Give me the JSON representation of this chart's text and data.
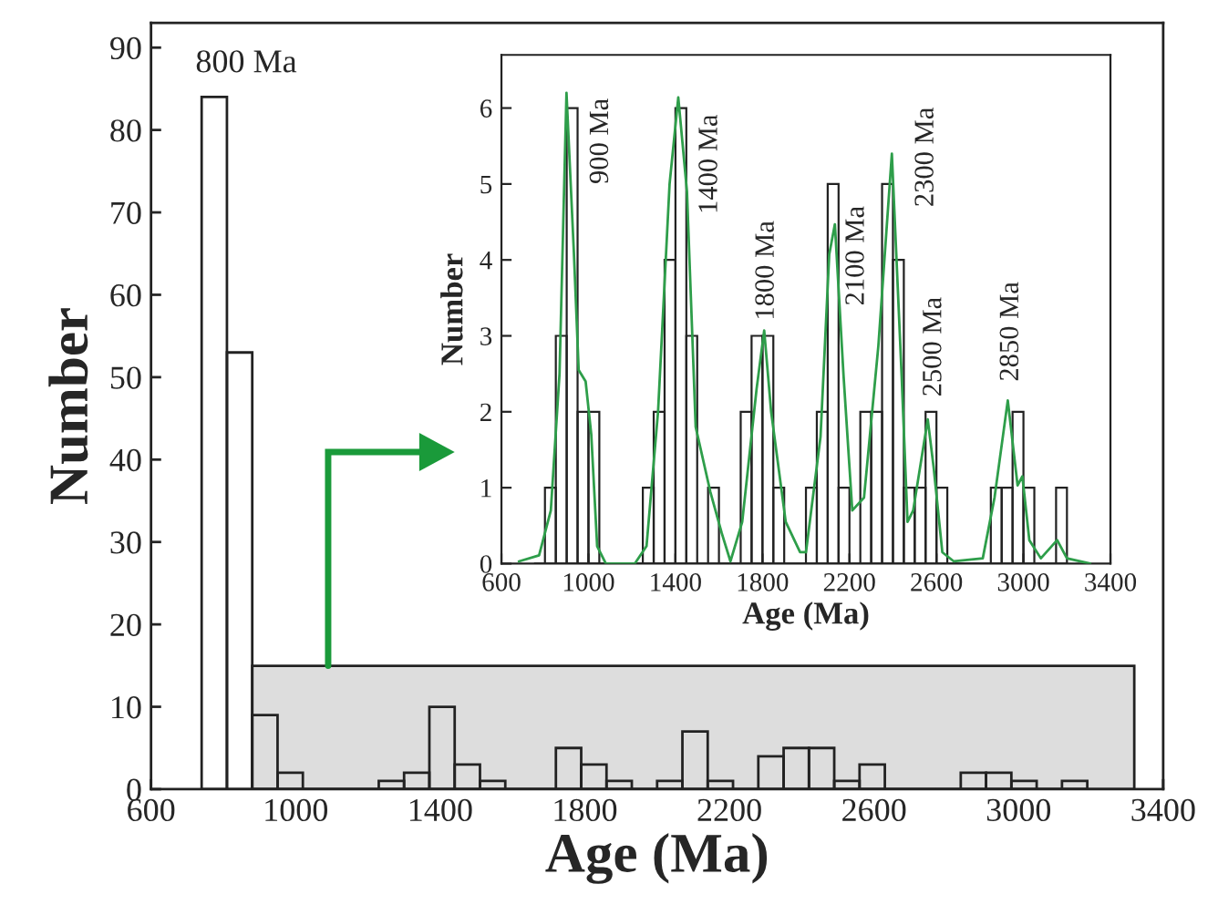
{
  "chart_data": [
    {
      "type": "histogram",
      "xlabel": "Age (Ma)",
      "ylabel": "Number",
      "bins": [
        740,
        810,
        880,
        950,
        1020,
        1090,
        1160,
        1230,
        1300,
        1370,
        1440,
        1510,
        1580,
        1650,
        1720,
        1790,
        1860,
        1930,
        2000,
        2070,
        2140,
        2210,
        2280,
        2350,
        2420,
        2490,
        2560,
        2630,
        2700,
        2770,
        2840,
        2910,
        2980,
        3050,
        3120,
        3190
      ],
      "values": [
        84,
        53,
        9,
        2,
        0,
        0,
        0,
        1,
        2,
        10,
        3,
        1,
        0,
        0,
        5,
        3,
        1,
        0,
        1,
        7,
        1,
        0,
        4,
        5,
        5,
        1,
        3,
        0,
        0,
        0,
        2,
        2,
        1,
        0,
        1
      ],
      "xlim": [
        600,
        3400
      ],
      "ylim": [
        0,
        93
      ],
      "xticks": [
        600,
        1000,
        1400,
        1800,
        2200,
        2600,
        3000,
        3400
      ],
      "yticks": [
        0,
        10,
        20,
        30,
        40,
        50,
        60,
        70,
        80,
        90
      ],
      "bands": [
        {
          "axis": "x",
          "from": 880,
          "to": 3320,
          "color": "#dddddd"
        }
      ],
      "annotations": [
        "800 Ma"
      ]
    },
    {
      "type": "histogram",
      "xlabel": "Age (Ma)",
      "ylabel": "Number",
      "bins": [
        750,
        800,
        850,
        900,
        950,
        1000,
        1050,
        1100,
        1150,
        1200,
        1250,
        1300,
        1350,
        1400,
        1450,
        1500,
        1550,
        1600,
        1650,
        1700,
        1750,
        1800,
        1850,
        1900,
        1950,
        2000,
        2050,
        2100,
        2150,
        2200,
        2250,
        2300,
        2350,
        2400,
        2450,
        2500,
        2550,
        2600,
        2650,
        2700,
        2750,
        2800,
        2850,
        2900,
        2950,
        3000,
        3050,
        3100,
        3150,
        3200
      ],
      "values": [
        0,
        1,
        3,
        6,
        2,
        2,
        0,
        0,
        0,
        0,
        1,
        2,
        4,
        6,
        3,
        0,
        1,
        0,
        0,
        2,
        3,
        3,
        1,
        0,
        0,
        1,
        2,
        5,
        1,
        0,
        2,
        2,
        5,
        4,
        1,
        1,
        2,
        1,
        0,
        0,
        0,
        0,
        1,
        1,
        2,
        1,
        0,
        0,
        1
      ],
      "series": [
        {
          "type": "line",
          "color": "#2e9e4a",
          "x": [
            680,
            773,
            827,
            867,
            899,
            933,
            955,
            987,
            1013,
            1040,
            1080,
            1213,
            1267,
            1320,
            1373,
            1413,
            1453,
            1493,
            1560,
            1613,
            1653,
            1707,
            1773,
            1808,
            1840,
            1907,
            1973,
            2000,
            2067,
            2107,
            2133,
            2173,
            2213,
            2267,
            2333,
            2395,
            2440,
            2467,
            2493,
            2560,
            2587,
            2627,
            2680,
            2813,
            2867,
            2928,
            2973,
            2995,
            3027,
            3080,
            3155,
            3200,
            3307
          ],
          "values": [
            0.03,
            0.11,
            0.7,
            2.5,
            6.2,
            4.1,
            2.55,
            2.4,
            1.7,
            0.23,
            0,
            0,
            0.23,
            2.0,
            5.0,
            6.14,
            4.9,
            1.8,
            0.95,
            0.4,
            0.03,
            0.55,
            2.3,
            3.07,
            2.0,
            0.55,
            0.15,
            0.15,
            1.67,
            4.07,
            4.47,
            2.47,
            0.7,
            0.87,
            2.87,
            5.4,
            2.47,
            0.55,
            0.7,
            1.9,
            1.27,
            0.15,
            0.03,
            0.07,
            0.87,
            2.15,
            1.03,
            1.15,
            0.31,
            0.07,
            0.31,
            0.07,
            0
          ]
        }
      ],
      "xlim": [
        600,
        3400
      ],
      "ylim": [
        0,
        6.7
      ],
      "xticks": [
        600,
        1000,
        1400,
        1800,
        2200,
        2600,
        3000,
        3400
      ],
      "yticks": [
        0,
        1,
        2,
        3,
        4,
        5,
        6
      ],
      "annotations": [
        "900 Ma",
        "1400 Ma",
        "1800 Ma",
        "2100 Ma",
        "2300 Ma",
        "2500 Ma",
        "2850 Ma"
      ]
    }
  ]
}
